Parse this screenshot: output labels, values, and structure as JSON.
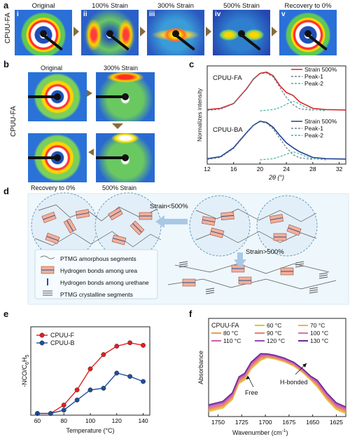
{
  "panel_a": {
    "letter": "a",
    "side_label": "CPUU-FA",
    "titles": [
      "Original",
      "100% Strain",
      "300% Strain",
      "500% Strain",
      "Recovery to 0%"
    ],
    "numerals": [
      "i",
      "ii",
      "iii",
      "iv",
      "v"
    ]
  },
  "panel_b": {
    "letter": "b",
    "side_label": "CPUU-FA",
    "top_titles": [
      "Original",
      "300% Strain"
    ],
    "bottom_titles": [
      "Recovery to 0%",
      "500% Strain"
    ]
  },
  "panel_c": {
    "letter": "c",
    "ylabel": "Normalizes intensity",
    "xlabel": "2θ (°)",
    "top": {
      "sample": "CPUU-FA",
      "legend": [
        "Strain 500%",
        "Peak-1",
        "Peak-2"
      ]
    },
    "bottom": {
      "sample": "CPUU-BA",
      "legend": [
        "Strain 500%",
        "Peak-1",
        "Peak-2"
      ]
    },
    "colors": {
      "fa": "#d62728",
      "ba": "#1f3f8f",
      "peak1": "#6e7f8f",
      "peak2": "#3fb3a0"
    }
  },
  "panel_d": {
    "letter": "d",
    "arrow_left": "Strain<500%",
    "arrow_down": "Strain>500%",
    "legend": [
      "PTMG amorphous segments",
      "Hydrogen bonds among urea",
      "Hydrogen bonds among urethane",
      "PTMG crystalline segments"
    ]
  },
  "panel_e": {
    "letter": "e",
    "ylabel": "-NCO/C",
    "ylabel_sub1": "6",
    "ylabel_h": "H",
    "ylabel_sub2": "5",
    "xlabel": "Temperature (°C)"
  },
  "panel_f": {
    "letter": "f",
    "ylabel": "Absorbance",
    "xlabel": "Wavenumber (cm",
    "xlabel_sup": "-1",
    "xlabel_close": ")",
    "annot_free": "Free",
    "annot_hbond": "H-bonded",
    "legend_title": "CPUU-FA",
    "legend": [
      {
        "label": "60 °C",
        "color": "#d4cc30"
      },
      {
        "label": "70 °C",
        "color": "#f2b05a"
      },
      {
        "label": "80 °C",
        "color": "#f09a55"
      },
      {
        "label": "90 °C",
        "color": "#e8806a"
      },
      {
        "label": "100 °C",
        "color": "#e070a0"
      },
      {
        "label": "110 °C",
        "color": "#c860b0"
      },
      {
        "label": "120 °C",
        "color": "#9a48b0"
      },
      {
        "label": "130 °C",
        "color": "#6a2a90"
      }
    ]
  },
  "chart_data": [
    {
      "type": "line",
      "panel": "c",
      "xlabel": "2θ (°)",
      "ylabel": "Normalizes intensity",
      "xlim": [
        12,
        33
      ],
      "xticks": [
        12,
        16,
        20,
        24,
        28,
        32
      ],
      "series": [
        {
          "name": "Strain 500%",
          "group": "CPUU-FA",
          "x": [
            12,
            14,
            16,
            18,
            19,
            20,
            21,
            22,
            23,
            24,
            25,
            26,
            28,
            30,
            33
          ],
          "y": [
            0.03,
            0.06,
            0.18,
            0.55,
            0.78,
            0.92,
            0.95,
            0.86,
            0.62,
            0.45,
            0.38,
            0.22,
            0.06,
            0.03,
            0.02
          ]
        },
        {
          "name": "Peak-1",
          "group": "CPUU-FA",
          "x": [
            12,
            14,
            16,
            18,
            19,
            20,
            21,
            22,
            23,
            24,
            25,
            26,
            28
          ],
          "y": [
            0.01,
            0.04,
            0.17,
            0.54,
            0.77,
            0.91,
            0.93,
            0.83,
            0.58,
            0.33,
            0.15,
            0.05,
            0.01
          ]
        },
        {
          "name": "Peak-2",
          "group": "CPUU-FA",
          "x": [
            20,
            22,
            23,
            24,
            25,
            26,
            27,
            28,
            30
          ],
          "y": [
            0.0,
            0.03,
            0.08,
            0.16,
            0.24,
            0.17,
            0.08,
            0.03,
            0.0
          ]
        },
        {
          "name": "Strain 500%",
          "group": "CPUU-BA",
          "x": [
            12,
            14,
            16,
            18,
            19,
            20,
            21,
            22,
            23,
            24,
            25,
            26,
            28,
            30,
            33
          ],
          "y": [
            0.03,
            0.08,
            0.3,
            0.68,
            0.85,
            0.95,
            0.92,
            0.8,
            0.6,
            0.42,
            0.3,
            0.2,
            0.06,
            0.03,
            0.02
          ]
        },
        {
          "name": "Peak-1",
          "group": "CPUU-BA",
          "x": [
            12,
            14,
            16,
            18,
            19,
            20,
            21,
            22,
            23,
            24,
            25,
            26,
            28
          ],
          "y": [
            0.01,
            0.06,
            0.28,
            0.66,
            0.84,
            0.94,
            0.9,
            0.76,
            0.53,
            0.3,
            0.13,
            0.05,
            0.01
          ]
        },
        {
          "name": "Peak-2",
          "group": "CPUU-BA",
          "x": [
            20,
            22,
            23,
            24,
            25,
            26,
            27,
            28,
            30
          ],
          "y": [
            0.0,
            0.03,
            0.08,
            0.14,
            0.2,
            0.15,
            0.08,
            0.03,
            0.0
          ]
        }
      ]
    },
    {
      "type": "line",
      "panel": "e",
      "xlabel": "Temperature (°C)",
      "ylabel": "-NCO/C6H5",
      "xlim": [
        55,
        145
      ],
      "xticks": [
        60,
        80,
        100,
        120,
        140
      ],
      "series": [
        {
          "name": "CPUU-F",
          "color": "#e02020",
          "x": [
            60,
            70,
            80,
            90,
            100,
            110,
            120,
            130,
            140
          ],
          "y": [
            0.02,
            0.02,
            0.12,
            0.3,
            0.55,
            0.72,
            0.82,
            0.86,
            0.83
          ]
        },
        {
          "name": "CPUU-B",
          "color": "#1f4e9a",
          "x": [
            60,
            70,
            80,
            90,
            100,
            110,
            120,
            130,
            140
          ],
          "y": [
            0.02,
            0.02,
            0.06,
            0.18,
            0.3,
            0.32,
            0.5,
            0.46,
            0.4
          ]
        }
      ]
    },
    {
      "type": "line",
      "panel": "f",
      "xlabel": "Wavenumber (cm-1)",
      "ylabel": "Absorbance",
      "xlim": [
        1760,
        1615
      ],
      "xticks": [
        1750,
        1725,
        1700,
        1675,
        1650,
        1625
      ],
      "series_profile": {
        "x": [
          1760,
          1745,
          1735,
          1728,
          1722,
          1715,
          1705,
          1698,
          1690,
          1680,
          1670,
          1660,
          1652,
          1645,
          1635,
          1625,
          1615
        ],
        "y": [
          0.05,
          0.1,
          0.22,
          0.45,
          0.5,
          0.66,
          0.78,
          0.82,
          0.8,
          0.76,
          0.7,
          0.6,
          0.5,
          0.4,
          0.22,
          0.08,
          0.02
        ]
      }
    }
  ]
}
